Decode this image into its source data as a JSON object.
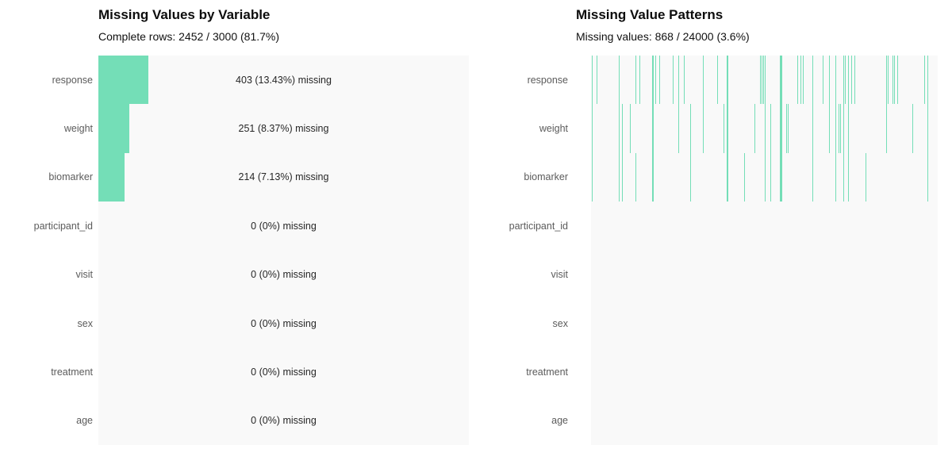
{
  "left_panel": {
    "title": "Missing Values by Variable",
    "subtitle": "Complete rows: 2452 / 3000 (81.7%)"
  },
  "right_panel": {
    "title": "Missing Value Patterns",
    "subtitle": "Missing values: 868 / 24000 (3.6%)"
  },
  "colors": {
    "accent": "#74DEB7",
    "plot_bg": "#f9f9f9",
    "row_label": "#5b5b5b",
    "annotation": "#262626",
    "title": "#0d0d0d"
  },
  "chart_data": [
    {
      "type": "bar",
      "orientation": "horizontal",
      "title": "Missing Values by Variable",
      "subtitle": "Complete rows: 2452 / 3000 (81.7%)",
      "categories": [
        "response",
        "weight",
        "biomarker",
        "participant_id",
        "visit",
        "sex",
        "treatment",
        "age"
      ],
      "missing_counts": [
        403,
        251,
        214,
        0,
        0,
        0,
        0,
        0
      ],
      "missing_pct": [
        13.43,
        8.37,
        7.13,
        0,
        0,
        0,
        0,
        0
      ],
      "bar_labels": [
        "403 (13.43%) missing",
        "251 (8.37%) missing",
        "214 (7.13%) missing",
        "0 (0%) missing",
        "0 (0%) missing",
        "0 (0%) missing",
        "0 (0%) missing",
        "0 (0%) missing"
      ],
      "total_rows": 3000,
      "complete_rows": 2452,
      "complete_pct": 81.7,
      "xlim": [
        0,
        100
      ],
      "grid": false,
      "legend": false
    },
    {
      "type": "heatmap",
      "title": "Missing Value Patterns",
      "subtitle": "Missing values: 868 / 24000 (3.6%)",
      "rows": [
        "response",
        "weight",
        "biomarker",
        "participant_id",
        "visit",
        "sex",
        "treatment",
        "age"
      ],
      "total_cells": 24000,
      "missing_cells": 868,
      "missing_pct": 3.6,
      "missing_columns": [
        {
          "x": 0.002,
          "vars": [
            "response",
            "weight",
            "biomarker"
          ],
          "w": 1
        },
        {
          "x": 0.016,
          "vars": [
            "response"
          ],
          "w": 1
        },
        {
          "x": 0.08,
          "vars": [
            "response",
            "weight",
            "biomarker"
          ],
          "w": 1
        },
        {
          "x": 0.089,
          "vars": [
            "weight",
            "biomarker"
          ],
          "w": 1
        },
        {
          "x": 0.112,
          "vars": [
            "weight"
          ],
          "w": 1
        },
        {
          "x": 0.128,
          "vars": [
            "response",
            "biomarker"
          ],
          "w": 1
        },
        {
          "x": 0.14,
          "vars": [
            "response"
          ],
          "w": 1
        },
        {
          "x": 0.176,
          "vars": [
            "response",
            "weight",
            "biomarker"
          ],
          "w": 2
        },
        {
          "x": 0.185,
          "vars": [
            "response"
          ],
          "w": 1
        },
        {
          "x": 0.197,
          "vars": [
            "response"
          ],
          "w": 1
        },
        {
          "x": 0.236,
          "vars": [
            "response"
          ],
          "w": 1
        },
        {
          "x": 0.252,
          "vars": [
            "response",
            "weight"
          ],
          "w": 1
        },
        {
          "x": 0.268,
          "vars": [
            "response"
          ],
          "w": 1
        },
        {
          "x": 0.286,
          "vars": [
            "weight",
            "biomarker"
          ],
          "w": 1
        },
        {
          "x": 0.323,
          "vars": [
            "response",
            "weight"
          ],
          "w": 1
        },
        {
          "x": 0.364,
          "vars": [
            "response"
          ],
          "w": 1
        },
        {
          "x": 0.382,
          "vars": [
            "weight"
          ],
          "w": 1
        },
        {
          "x": 0.391,
          "vars": [
            "response",
            "weight",
            "biomarker"
          ],
          "w": 2
        },
        {
          "x": 0.442,
          "vars": [
            "biomarker"
          ],
          "w": 1
        },
        {
          "x": 0.471,
          "vars": [
            "weight"
          ],
          "w": 1
        },
        {
          "x": 0.487,
          "vars": [
            "response"
          ],
          "w": 1
        },
        {
          "x": 0.492,
          "vars": [
            "response"
          ],
          "w": 1
        },
        {
          "x": 0.497,
          "vars": [
            "response"
          ],
          "w": 1
        },
        {
          "x": 0.501,
          "vars": [
            "response",
            "weight",
            "biomarker"
          ],
          "w": 1
        },
        {
          "x": 0.517,
          "vars": [
            "weight",
            "biomarker"
          ],
          "w": 1
        },
        {
          "x": 0.545,
          "vars": [
            "response",
            "weight",
            "biomarker"
          ],
          "w": 3
        },
        {
          "x": 0.563,
          "vars": [
            "weight"
          ],
          "w": 1
        },
        {
          "x": 0.567,
          "vars": [
            "weight"
          ],
          "w": 1
        },
        {
          "x": 0.595,
          "vars": [
            "response"
          ],
          "w": 1
        },
        {
          "x": 0.604,
          "vars": [
            "response"
          ],
          "w": 1
        },
        {
          "x": 0.611,
          "vars": [
            "response"
          ],
          "w": 1
        },
        {
          "x": 0.638,
          "vars": [
            "response",
            "weight",
            "biomarker"
          ],
          "w": 1
        },
        {
          "x": 0.668,
          "vars": [
            "response"
          ],
          "w": 1
        },
        {
          "x": 0.687,
          "vars": [
            "response",
            "weight"
          ],
          "w": 1
        },
        {
          "x": 0.705,
          "vars": [
            "response",
            "weight",
            "biomarker"
          ],
          "w": 1
        },
        {
          "x": 0.714,
          "vars": [
            "weight"
          ],
          "w": 1
        },
        {
          "x": 0.719,
          "vars": [
            "weight"
          ],
          "w": 1
        },
        {
          "x": 0.728,
          "vars": [
            "response",
            "weight",
            "biomarker"
          ],
          "w": 1
        },
        {
          "x": 0.732,
          "vars": [
            "response"
          ],
          "w": 1
        },
        {
          "x": 0.741,
          "vars": [
            "response",
            "weight",
            "biomarker"
          ],
          "w": 1
        },
        {
          "x": 0.751,
          "vars": [
            "response"
          ],
          "w": 1
        },
        {
          "x": 0.76,
          "vars": [
            "response"
          ],
          "w": 1
        },
        {
          "x": 0.792,
          "vars": [
            "biomarker"
          ],
          "w": 1
        },
        {
          "x": 0.851,
          "vars": [
            "response",
            "weight"
          ],
          "w": 1
        },
        {
          "x": 0.856,
          "vars": [
            "response"
          ],
          "w": 1
        },
        {
          "x": 0.87,
          "vars": [
            "response"
          ],
          "w": 1
        },
        {
          "x": 0.874,
          "vars": [
            "response"
          ],
          "w": 1
        },
        {
          "x": 0.883,
          "vars": [
            "response"
          ],
          "w": 1
        },
        {
          "x": 0.927,
          "vars": [
            "weight"
          ],
          "w": 1
        },
        {
          "x": 0.961,
          "vars": [
            "response"
          ],
          "w": 1
        },
        {
          "x": 0.97,
          "vars": [
            "response",
            "weight",
            "biomarker"
          ],
          "w": 1
        }
      ]
    }
  ]
}
